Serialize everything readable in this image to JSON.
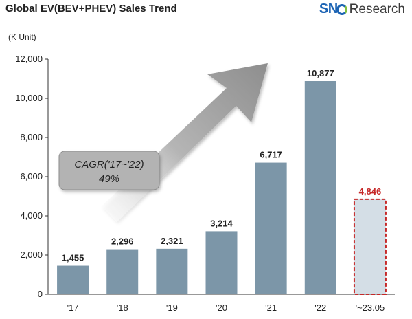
{
  "header": {
    "title": "Global EV(BEV+PHEV)  Sales Trend",
    "logo_prefix": "SN",
    "logo_suffix": "Research"
  },
  "annotation": {
    "line1": "CAGR('17~'22)",
    "line2": "49%"
  },
  "colors": {
    "bar": "#7c96a8",
    "forecast_fill": "#d4dee6",
    "forecast_border": "#c62828",
    "highlight_label": "#c62828",
    "arrow": "#9a9a9a"
  },
  "chart_data": {
    "type": "bar",
    "ylabel": "(K Unit)",
    "categories": [
      "'17",
      "'18",
      "'19",
      "'20",
      "'21",
      "'22",
      "'~23.05"
    ],
    "values": [
      1455,
      2296,
      2321,
      3214,
      6717,
      10877,
      4846
    ],
    "data_labels": [
      "1,455",
      "2,296",
      "2,321",
      "3,214",
      "6,717",
      "10,877",
      "4,846"
    ],
    "highlight_index": 6,
    "ylim": [
      0,
      12000
    ],
    "yticks": [
      0,
      2000,
      4000,
      6000,
      8000,
      10000,
      12000
    ],
    "ytick_labels": [
      "0",
      "2,000",
      "4,000",
      "6,000",
      "8,000",
      "10,000",
      "12,000"
    ],
    "grid": false,
    "legend": "none"
  }
}
